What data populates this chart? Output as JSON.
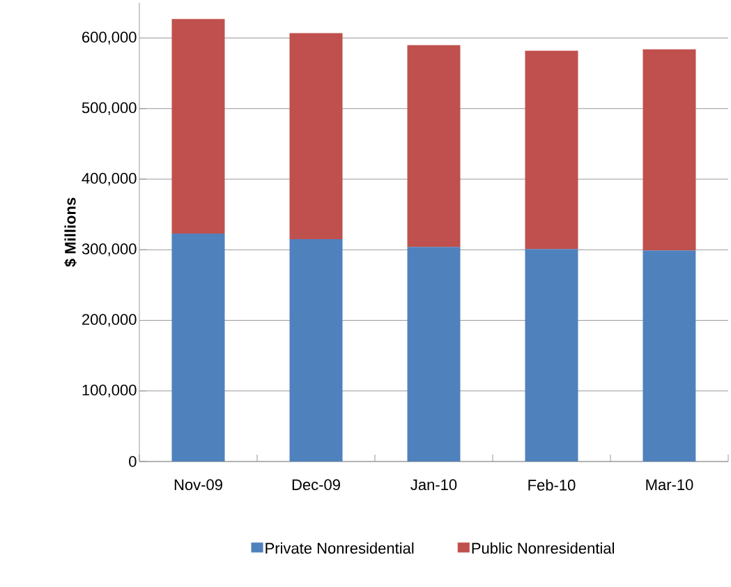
{
  "chart_data": {
    "type": "bar",
    "stacked": true,
    "ylabel": "$ Millions",
    "categories": [
      "Nov-09",
      "Dec-09",
      "Jan-10",
      "Feb-10",
      "Mar-10"
    ],
    "series": [
      {
        "name": "Private Nonresidential",
        "color": "#4f81bd",
        "values": [
          323000,
          315000,
          304000,
          301000,
          299000
        ]
      },
      {
        "name": "Public Nonresidential",
        "color": "#c0504d",
        "values": [
          304000,
          292000,
          286000,
          281000,
          285000
        ]
      }
    ],
    "ylim": [
      0,
      650000
    ],
    "yticks": [
      0,
      {
        "value": 100000,
        "label": "100,000"
      },
      {
        "value": 200000,
        "label": "200,000"
      },
      {
        "value": 300000,
        "label": "300,000"
      },
      {
        "value": 400000,
        "label": "400,000"
      },
      {
        "value": 500000,
        "label": "500,000"
      },
      {
        "value": 600000,
        "label": "600,000"
      }
    ],
    "grid": "y",
    "legend": "bottom"
  }
}
